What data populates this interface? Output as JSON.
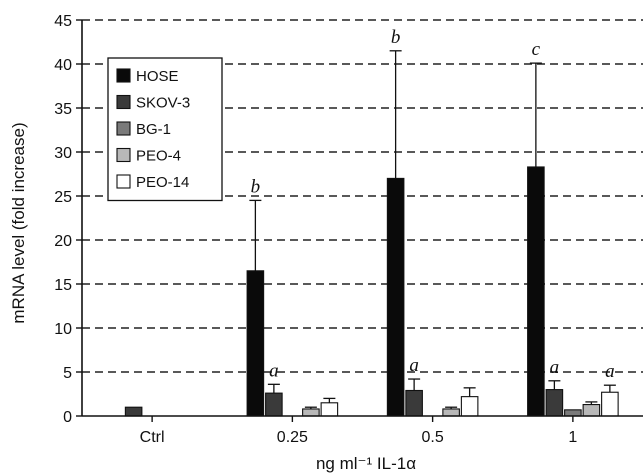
{
  "chart_data": {
    "type": "bar",
    "categories": [
      "Ctrl",
      "0.25",
      "0.5",
      "1"
    ],
    "xlabel": "ng ml⁻¹ IL-1α",
    "ylabel": "mRNA level (fold increase)",
    "ylim": [
      0,
      45
    ],
    "yticks": [
      0,
      5,
      10,
      15,
      20,
      25,
      30,
      35,
      40,
      45
    ],
    "grid": "horizontal dashed",
    "legend_position": "top-left",
    "series": [
      {
        "name": "HOSE",
        "color": "#0a0a0a",
        "values": [
          null,
          16.5,
          27,
          28.3
        ],
        "errors": [
          null,
          8,
          14.5,
          11.8
        ]
      },
      {
        "name": "SKOV-3",
        "color": "#3a3a3a",
        "values": [
          1,
          2.6,
          2.9,
          3
        ],
        "errors": [
          null,
          1,
          1.3,
          1
        ]
      },
      {
        "name": "BG-1",
        "color": "#7a7a7a",
        "values": [
          null,
          null,
          null,
          0.7
        ],
        "errors": [
          null,
          null,
          null,
          null
        ]
      },
      {
        "name": "PEO-4",
        "color": "#b8b8b8",
        "values": [
          null,
          0.8,
          0.8,
          1.3
        ],
        "errors": [
          null,
          0.2,
          0.2,
          0.3
        ]
      },
      {
        "name": "PEO-14",
        "color": "#ffffff",
        "values": [
          null,
          1.5,
          2.2,
          2.7
        ],
        "errors": [
          null,
          0.5,
          1,
          0.8
        ]
      }
    ],
    "annotations": [
      {
        "text": "b",
        "category": "0.25",
        "series": "HOSE"
      },
      {
        "text": "a",
        "category": "0.25",
        "series": "SKOV-3"
      },
      {
        "text": "b",
        "category": "0.5",
        "series": "HOSE"
      },
      {
        "text": "a",
        "category": "0.5",
        "series": "SKOV-3"
      },
      {
        "text": "c",
        "category": "1",
        "series": "HOSE"
      },
      {
        "text": "a",
        "category": "1",
        "series": "SKOV-3"
      },
      {
        "text": "a",
        "category": "1",
        "series": "PEO-14"
      }
    ]
  }
}
